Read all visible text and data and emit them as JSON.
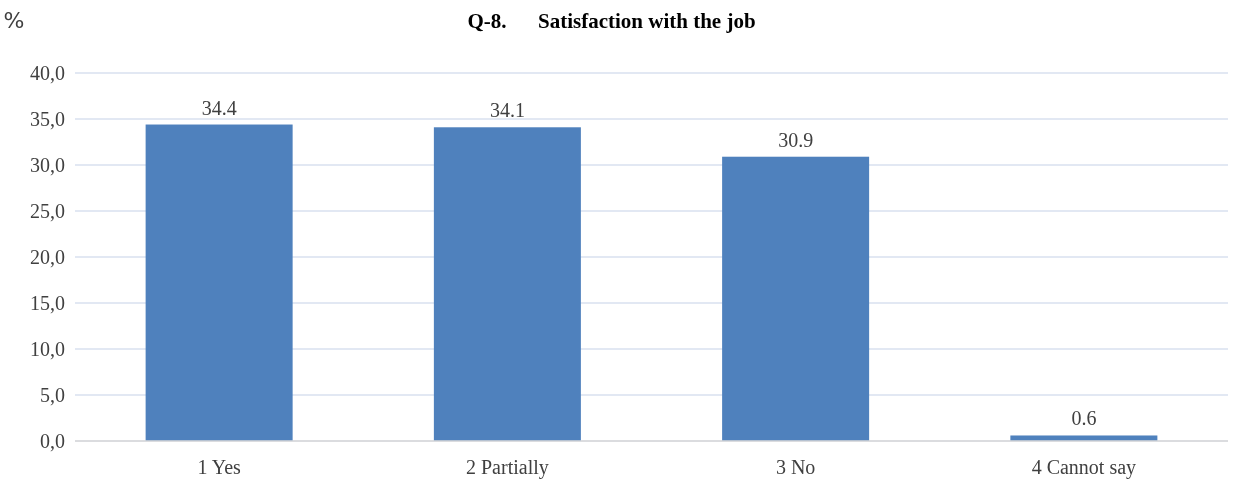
{
  "chart_data": {
    "type": "bar",
    "title": "Q-8.      Satisfaction with the job",
    "ylabel": "%",
    "categories": [
      "1 Yes",
      "2 Partially",
      "3 No",
      "4 Cannot say"
    ],
    "values": [
      34.4,
      34.1,
      30.9,
      0.6
    ],
    "color": "#4f81bd",
    "ylim": [
      0,
      40
    ],
    "yticks": [
      {
        "value": 0,
        "label": "0,0"
      },
      {
        "value": 5,
        "label": "5,0"
      },
      {
        "value": 10,
        "label": "10,0"
      },
      {
        "value": 15,
        "label": "15,0"
      },
      {
        "value": 20,
        "label": "20,0"
      },
      {
        "value": 25,
        "label": "25,0"
      },
      {
        "value": 30,
        "label": "30,0"
      },
      {
        "value": 35,
        "label": "35,0"
      },
      {
        "value": 40,
        "label": "40,0"
      }
    ],
    "grid": "y",
    "data_labels": true
  }
}
